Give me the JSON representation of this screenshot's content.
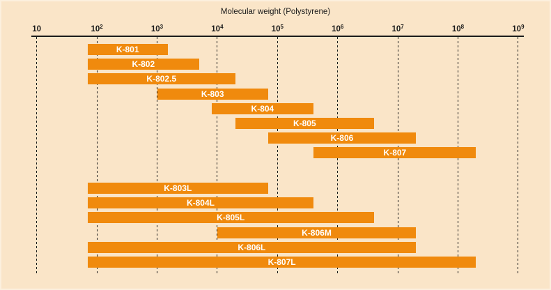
{
  "title": "Molecular weight (Polystyrene)",
  "colors": {
    "background": "#FAE5C8",
    "bar": "#F08A0D",
    "axis": "#1B1B1B",
    "bar_label": "#FFFFFF",
    "gridline": "#1C1C1C"
  },
  "chart_data": {
    "type": "bar",
    "subtype": "horizontal-range-bars",
    "title": "Molecular weight (Polystyrene)",
    "xlabel": "Molecular weight (Polystyrene)",
    "x_scale": "log10",
    "x_range": [
      10,
      1000000000
    ],
    "grid": "dashed-vertical-at-each-decade",
    "legend": "none",
    "ticks": [
      {
        "text": "10",
        "sup": ""
      },
      {
        "text": "10",
        "sup": "2"
      },
      {
        "text": "10",
        "sup": "3"
      },
      {
        "text": "10",
        "sup": "4"
      },
      {
        "text": "10",
        "sup": "5"
      },
      {
        "text": "10",
        "sup": "6"
      },
      {
        "text": "10",
        "sup": "7"
      },
      {
        "text": "10",
        "sup": "8"
      },
      {
        "text": "10",
        "sup": "9"
      }
    ],
    "tick_exponents": [
      1,
      2,
      3,
      4,
      5,
      6,
      7,
      8,
      9
    ],
    "groups": [
      {
        "name": "standard-columns",
        "bars": [
          {
            "label": "K-801",
            "mw_min": 70,
            "mw_max": 1500
          },
          {
            "label": "K-802",
            "mw_min": 70,
            "mw_max": 5000
          },
          {
            "label": "K-802.5",
            "mw_min": 70,
            "mw_max": 20000
          },
          {
            "label": "K-803",
            "mw_min": 1000,
            "mw_max": 70000
          },
          {
            "label": "K-804",
            "mw_min": 8000,
            "mw_max": 400000
          },
          {
            "label": "K-805",
            "mw_min": 20000,
            "mw_max": 4000000
          },
          {
            "label": "K-806",
            "mw_min": 70000,
            "mw_max": 20000000
          },
          {
            "label": "K-807",
            "mw_min": 400000,
            "mw_max": 200000000
          }
        ]
      },
      {
        "name": "linear-columns",
        "bars": [
          {
            "label": "K-803L",
            "mw_min": 70,
            "mw_max": 70000
          },
          {
            "label": "K-804L",
            "mw_min": 70,
            "mw_max": 400000
          },
          {
            "label": "K-805L",
            "mw_min": 70,
            "mw_max": 4000000
          },
          {
            "label": "K-806M",
            "mw_min": 10000,
            "mw_max": 20000000
          },
          {
            "label": "K-806L",
            "mw_min": 70,
            "mw_max": 20000000
          },
          {
            "label": "K-807L",
            "mw_min": 70,
            "mw_max": 200000000
          }
        ]
      }
    ]
  }
}
